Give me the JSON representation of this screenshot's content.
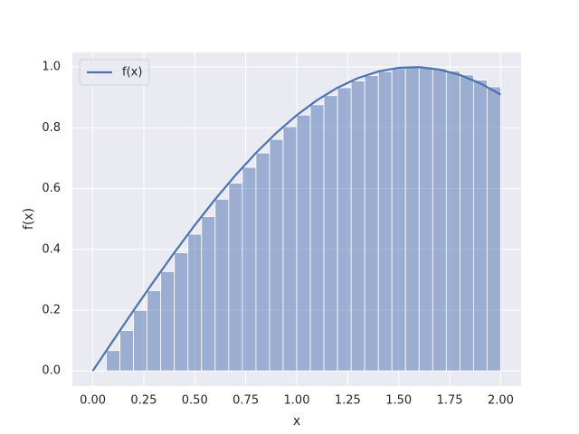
{
  "chart_data": {
    "type": "line",
    "xlabel": "x",
    "ylabel": "f(x)",
    "xlim": [
      -0.1,
      2.1
    ],
    "ylim": [
      -0.05,
      1.048
    ],
    "xticks": [
      {
        "value": 0,
        "label": "0.00"
      },
      {
        "value": 0.25,
        "label": "0.25"
      },
      {
        "value": 0.5,
        "label": "0.50"
      },
      {
        "value": 0.75,
        "label": "0.75"
      },
      {
        "value": 1,
        "label": "1.00"
      },
      {
        "value": 1.25,
        "label": "1.25"
      },
      {
        "value": 1.5,
        "label": "1.50"
      },
      {
        "value": 1.75,
        "label": "1.75"
      },
      {
        "value": 2,
        "label": "2.00"
      }
    ],
    "yticks": [
      {
        "value": 0,
        "label": "0.0"
      },
      {
        "value": 0.2,
        "label": "0.2"
      },
      {
        "value": 0.4,
        "label": "0.4"
      },
      {
        "value": 0.6,
        "label": "0.6"
      },
      {
        "value": 0.8,
        "label": "0.8"
      },
      {
        "value": 1,
        "label": "1.0"
      }
    ],
    "grid": true,
    "legend": "upper left",
    "bars": {
      "type": "histogram",
      "color": "#4c72b0",
      "opacity": 0.5,
      "bins": [
        0.0667,
        0.1333,
        0.2,
        0.2667,
        0.3333,
        0.4,
        0.4667,
        0.5333,
        0.6,
        0.6667,
        0.7333,
        0.8,
        0.8667,
        0.9333,
        1.0,
        1.0667,
        1.1333,
        1.2,
        1.2667,
        1.3333,
        1.4,
        1.4667,
        1.5333,
        1.6,
        1.6667,
        1.7333,
        1.8,
        1.8667,
        1.9333,
        2.0
      ],
      "values": [
        0.067,
        0.133,
        0.199,
        0.264,
        0.327,
        0.389,
        0.45,
        0.508,
        0.565,
        0.618,
        0.67,
        0.717,
        0.762,
        0.804,
        0.842,
        0.876,
        0.906,
        0.932,
        0.954,
        0.972,
        0.985,
        0.995,
        0.999,
        1.0,
        0.995,
        0.987,
        0.974,
        0.957,
        0.935
      ]
    },
    "series": [
      {
        "name": "f(x)",
        "type": "line",
        "color": "#4c72b0",
        "x": [
          0,
          0.1,
          0.2,
          0.3,
          0.4,
          0.5,
          0.6,
          0.7,
          0.8,
          0.9,
          1.0,
          1.1,
          1.2,
          1.3,
          1.4,
          1.5,
          1.6,
          1.7,
          1.8,
          1.9,
          2.0
        ],
        "values": [
          0,
          0.0998,
          0.1987,
          0.2955,
          0.3894,
          0.4794,
          0.5646,
          0.6442,
          0.7174,
          0.7833,
          0.8415,
          0.8912,
          0.932,
          0.9636,
          0.9854,
          0.9975,
          0.9996,
          0.9917,
          0.9738,
          0.9463,
          0.9093
        ]
      }
    ]
  }
}
